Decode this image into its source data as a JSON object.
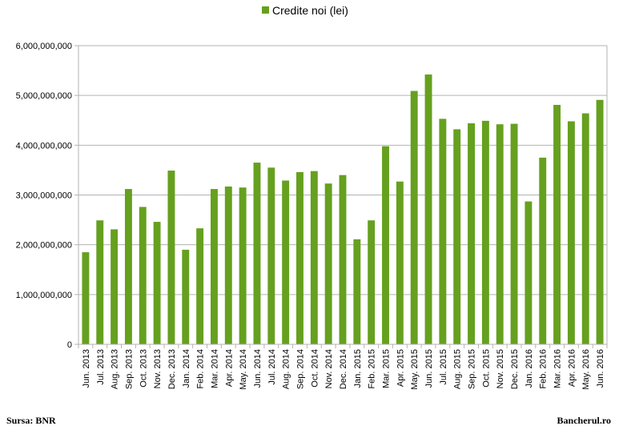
{
  "chart_data": {
    "type": "bar",
    "title": "",
    "xlabel": "",
    "ylabel": "",
    "legend": {
      "position": "top-center",
      "entries": [
        {
          "name": "Credite noi (lei)",
          "color": "#66a01f"
        }
      ]
    },
    "grid": true,
    "ylim": [
      0,
      6000000000
    ],
    "yticks": [
      "0",
      "1,000,000,000",
      "2,000,000,000",
      "3,000,000,000",
      "4,000,000,000",
      "5,000,000,000",
      "6,000,000,000"
    ],
    "categories": [
      "Jun. 2013",
      "Jul. 2013",
      "Aug. 2013",
      "Sep. 2013",
      "Oct. 2013",
      "Nov. 2013",
      "Dec. 2013",
      "Jan. 2014",
      "Feb. 2014",
      "Mar. 2014",
      "Apr. 2014",
      "May. 2014",
      "Jun. 2014",
      "Jul. 2014",
      "Aug. 2014",
      "Sep. 2014",
      "Oct. 2014",
      "Nov. 2014",
      "Dec. 2014",
      "Jan. 2015",
      "Feb. 2015",
      "Mar. 2015",
      "Apr. 2015",
      "May. 2015",
      "Jun. 2015",
      "Jul. 2015",
      "Aug. 2015",
      "Sep. 2015",
      "Oct. 2015",
      "Nov. 2015",
      "Dec. 2015",
      "Jan. 2016",
      "Feb. 2016",
      "Mar. 2016",
      "Apr. 2016",
      "May. 2016",
      "Jun. 2016"
    ],
    "series": [
      {
        "name": "Credite noi (lei)",
        "color": "#66a01f",
        "values": [
          1850000000,
          2490000000,
          2310000000,
          3120000000,
          2760000000,
          2460000000,
          3490000000,
          1900000000,
          2330000000,
          3120000000,
          3170000000,
          3150000000,
          3650000000,
          3550000000,
          3290000000,
          3460000000,
          3480000000,
          3230000000,
          3400000000,
          2110000000,
          2490000000,
          3980000000,
          3270000000,
          5090000000,
          5420000000,
          4530000000,
          4320000000,
          4440000000,
          4490000000,
          4420000000,
          4430000000,
          2870000000,
          3750000000,
          4810000000,
          4480000000,
          4640000000,
          4910000000
        ]
      }
    ]
  },
  "footer": {
    "source": "Sursa: BNR",
    "credit": "Bancherul.ro"
  }
}
